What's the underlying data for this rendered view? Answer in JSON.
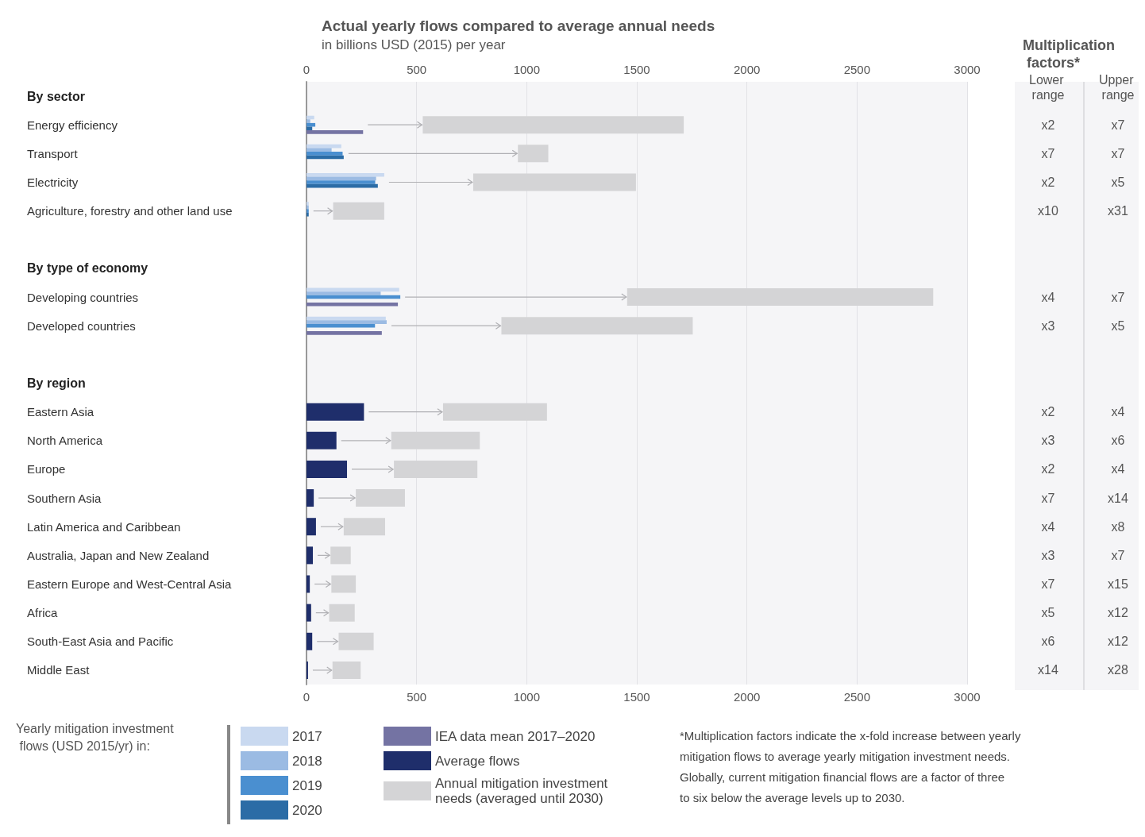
{
  "chart_data": {
    "type": "bar",
    "orientation": "horizontal",
    "title": "Actual yearly flows compared to average annual needs",
    "subtitle": "in billions USD (2015) per year",
    "categories": [
      "By sector",
      "Energy efficiency",
      "Transport",
      "Electricity",
      "Agriculture, forestry and other land use",
      null,
      "By type of economy",
      "Developing countries",
      "Developed countries",
      null,
      "By region",
      "Eastern Asia",
      "North America",
      "Europe",
      "Southern Asia",
      "Latin America and Caribbean",
      "Australia, Japan and New Zealand",
      "Eastern Europe and West-Central Asia",
      "Africa",
      "South-East Asia and Pacific",
      "Middle East"
    ],
    "series": [
      {
        "name": "2017",
        "color": "#c9d9f0",
        "values": [
          null,
          35,
          158,
          353,
          10,
          null,
          null,
          421,
          360,
          null,
          null,
          null,
          null,
          null,
          null,
          null,
          null,
          null,
          null,
          null,
          null
        ]
      },
      {
        "name": "2018",
        "color": "#9bbbe3",
        "values": [
          null,
          17,
          114,
          316,
          10,
          null,
          null,
          337,
          364,
          null,
          null,
          null,
          null,
          null,
          null,
          null,
          null,
          null,
          null,
          null,
          null
        ]
      },
      {
        "name": "2019",
        "color": "#4a8fd0",
        "values": [
          null,
          40,
          164,
          312,
          10,
          null,
          null,
          426,
          311,
          null,
          null,
          null,
          null,
          null,
          null,
          null,
          null,
          null,
          null,
          null,
          null
        ]
      },
      {
        "name": "2020",
        "color": "#2b6ca6",
        "values": [
          null,
          26,
          169,
          324,
          10,
          null,
          null,
          null,
          null,
          null,
          null,
          null,
          null,
          null,
          null,
          null,
          null,
          null,
          null,
          null,
          null
        ]
      },
      {
        "name": "IEA data mean 2017–2020",
        "color": "#7473a3",
        "values": [
          null,
          257,
          null,
          null,
          null,
          null,
          null,
          415,
          342,
          null,
          null,
          null,
          null,
          null,
          null,
          null,
          null,
          null,
          null,
          null,
          null
        ]
      },
      {
        "name": "Average flows",
        "color": "#1f2e6b",
        "values": [
          null,
          null,
          null,
          null,
          null,
          null,
          null,
          null,
          null,
          null,
          null,
          261,
          136,
          184,
          33,
          43,
          29,
          15,
          21,
          26,
          7
        ]
      },
      {
        "name": "Annual mitigation investment needs (averaged until 2030)",
        "color": "#d4d4d6",
        "base": [
          null,
          528,
          960,
          757,
          121,
          null,
          null,
          1456,
          885,
          null,
          null,
          620,
          385,
          397,
          224,
          169,
          109,
          113,
          103,
          146,
          118
        ],
        "values": [
          null,
          1185,
          138,
          739,
          232,
          null,
          null,
          1390,
          869,
          null,
          null,
          472,
          402,
          379,
          223,
          188,
          92,
          111,
          116,
          159,
          128
        ]
      }
    ],
    "xlim": [
      0,
      3000
    ],
    "xticks": [
      0,
      500,
      1000,
      1500,
      2000,
      2500,
      3000
    ],
    "x2lim": [
      0,
      3000
    ],
    "x2ticks": [
      0,
      500,
      1000,
      1500,
      2000,
      2500,
      3000
    ],
    "grid": "x",
    "legend": "bottom left",
    "legend_title": "Yearly mitigation investment flows (USD 2015/yr) in:",
    "annotations": [
      "Multiplication factors*",
      "Lower range",
      "Upper range",
      "*Multiplication factors indicate the x-fold increase between yearly mitigation flows to average yearly mitigation investment needs. Globally, current mitigation financial flows are a factor of three to six below the average levels up to 2030.",
      "x2",
      "x7",
      "x7",
      "x7",
      "x2",
      "x5",
      "x10",
      "x31",
      "x4",
      "x7",
      "x3",
      "x5",
      "x2",
      "x4",
      "x3",
      "x6",
      "x2",
      "x4",
      "x7",
      "x14",
      "x4",
      "x8",
      "x3",
      "x7",
      "x7",
      "x15",
      "x5",
      "x12",
      "x6",
      "x12",
      "x14",
      "x28"
    ]
  }
}
